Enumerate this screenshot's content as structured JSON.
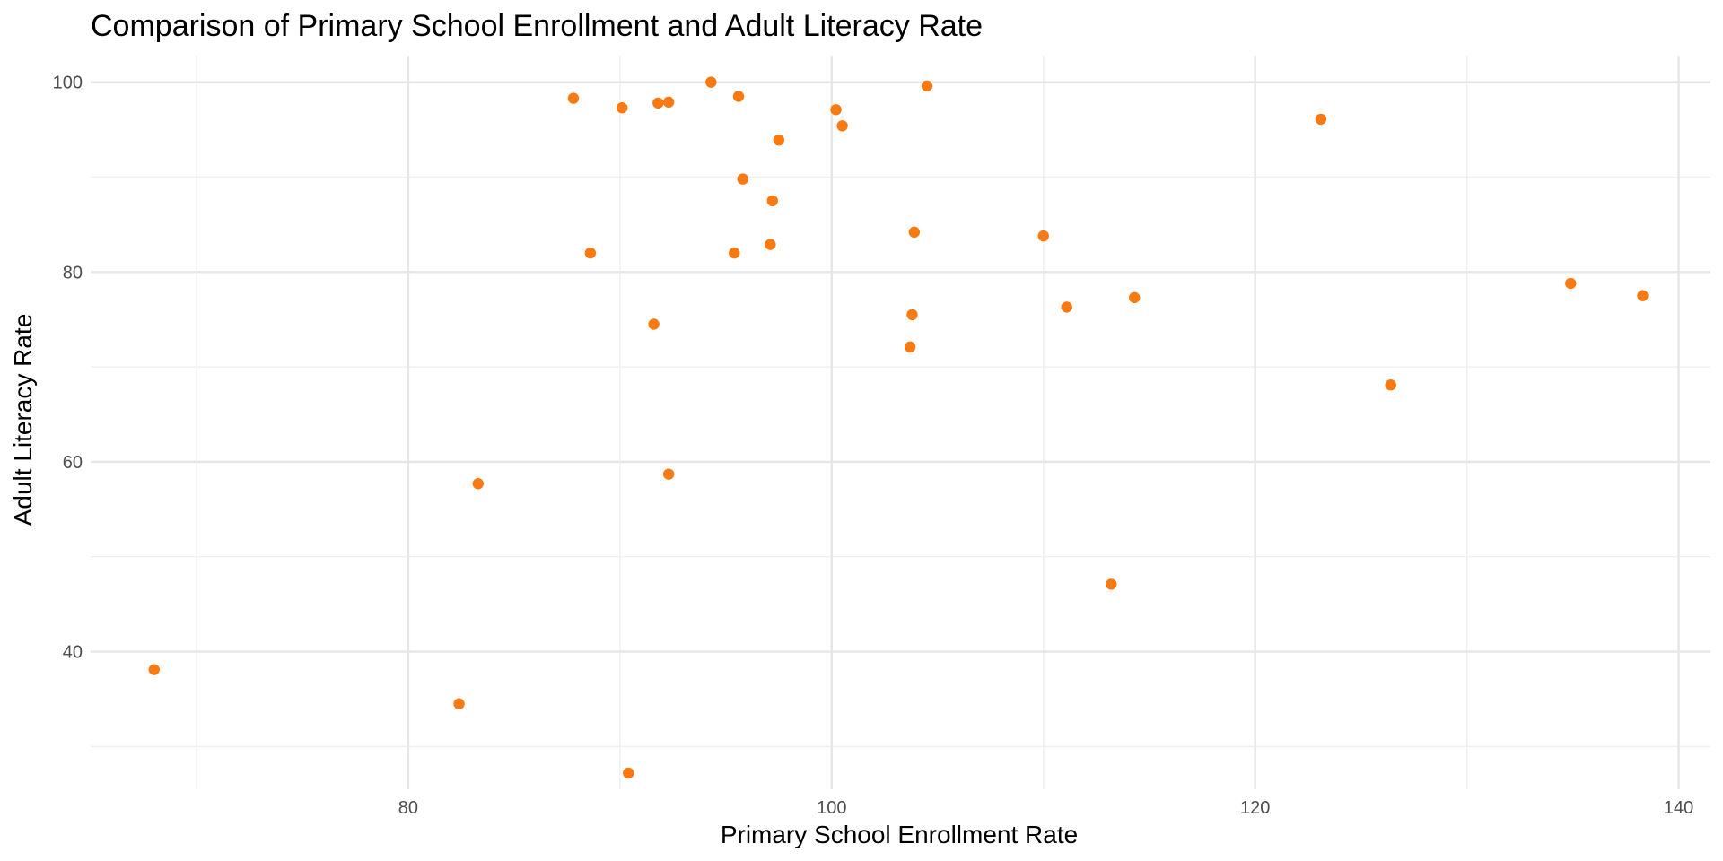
{
  "chart_data": {
    "type": "scatter",
    "title": "Comparison of Primary School Enrollment and Adult Literacy Rate",
    "xlabel": "Primary School Enrollment Rate",
    "ylabel": "Adult Literacy Rate",
    "xlim": [
      65,
      141.5
    ],
    "ylim": [
      25.5,
      102.8
    ],
    "x_ticks": [
      80,
      100,
      120,
      140
    ],
    "x_tick_labels": [
      "80",
      "100",
      "120",
      "140"
    ],
    "x_minor_ticks": [
      70,
      90,
      110,
      130
    ],
    "y_ticks": [
      40,
      60,
      80,
      100
    ],
    "y_tick_labels": [
      "40",
      "60",
      "80",
      "100"
    ],
    "y_minor_ticks": [
      30,
      50,
      70,
      90
    ],
    "grid": true,
    "legend": "none",
    "point_color": "#F97A12",
    "points": [
      {
        "x": 68.0,
        "y": 38.1
      },
      {
        "x": 82.4,
        "y": 34.5
      },
      {
        "x": 83.3,
        "y": 57.7
      },
      {
        "x": 87.8,
        "y": 98.3
      },
      {
        "x": 88.6,
        "y": 82.0
      },
      {
        "x": 90.1,
        "y": 97.3
      },
      {
        "x": 90.4,
        "y": 27.2
      },
      {
        "x": 91.6,
        "y": 74.5
      },
      {
        "x": 91.8,
        "y": 97.8
      },
      {
        "x": 92.3,
        "y": 97.9
      },
      {
        "x": 92.3,
        "y": 58.7
      },
      {
        "x": 94.3,
        "y": 100.0
      },
      {
        "x": 95.4,
        "y": 82.0
      },
      {
        "x": 95.6,
        "y": 98.5
      },
      {
        "x": 95.8,
        "y": 89.8
      },
      {
        "x": 97.1,
        "y": 82.9
      },
      {
        "x": 97.2,
        "y": 87.5
      },
      {
        "x": 97.5,
        "y": 93.9
      },
      {
        "x": 100.2,
        "y": 97.1
      },
      {
        "x": 100.5,
        "y": 95.4
      },
      {
        "x": 103.7,
        "y": 72.1
      },
      {
        "x": 103.8,
        "y": 75.5
      },
      {
        "x": 103.9,
        "y": 84.2
      },
      {
        "x": 104.5,
        "y": 99.6
      },
      {
        "x": 110.0,
        "y": 83.8
      },
      {
        "x": 111.1,
        "y": 76.3
      },
      {
        "x": 113.2,
        "y": 47.1
      },
      {
        "x": 114.3,
        "y": 77.3
      },
      {
        "x": 123.1,
        "y": 96.1
      },
      {
        "x": 126.4,
        "y": 68.1
      },
      {
        "x": 134.9,
        "y": 78.8
      },
      {
        "x": 138.3,
        "y": 77.5
      }
    ]
  }
}
